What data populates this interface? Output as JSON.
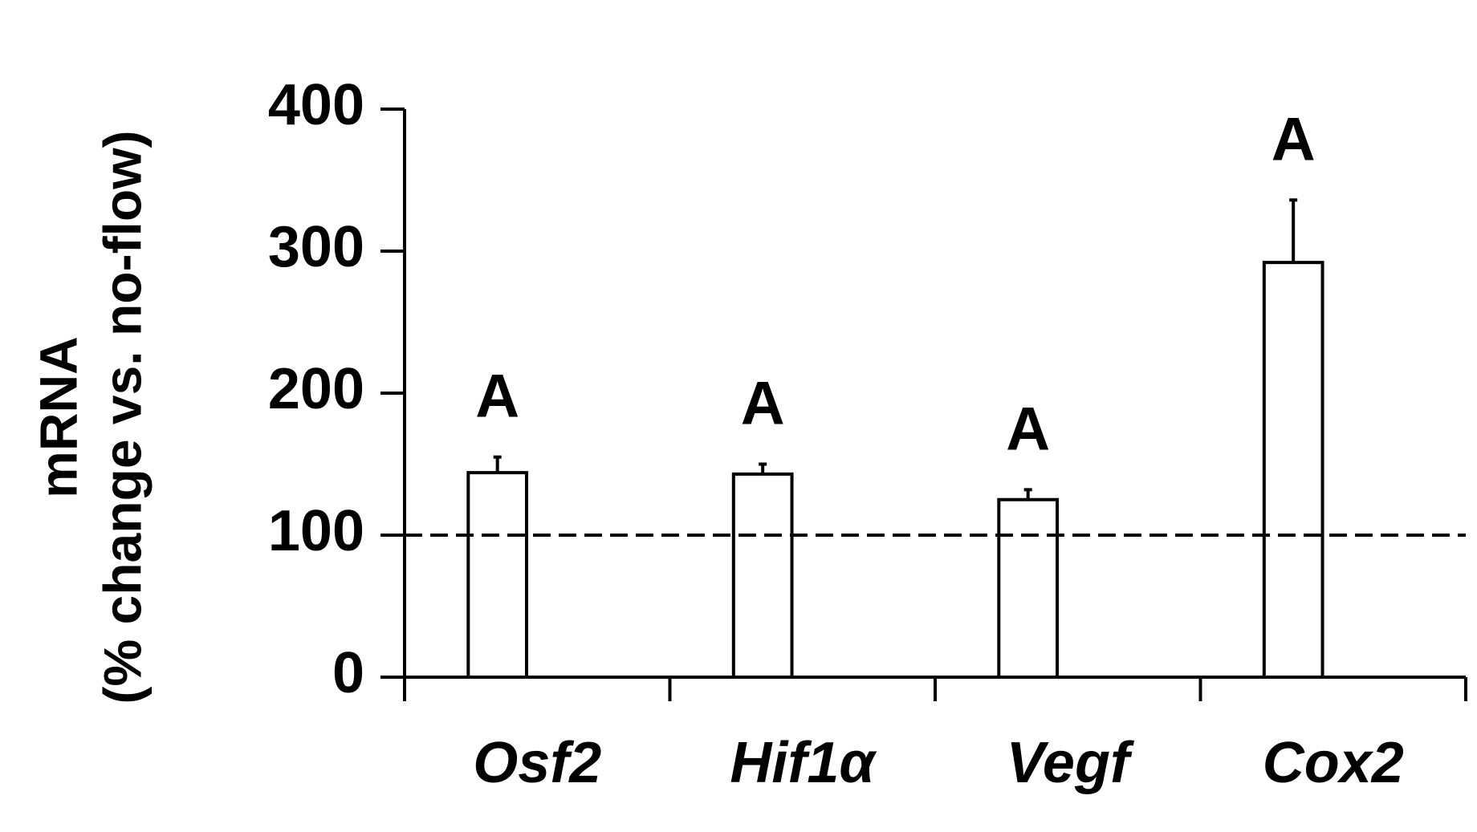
{
  "chart_data": {
    "type": "bar",
    "y_label_lines": [
      "mRNA",
      "(% change vs. no-flow)"
    ],
    "categories": [
      "Osf2",
      "Hif1α",
      "Vegf",
      "Cox2"
    ],
    "values": [
      144,
      143,
      125,
      292
    ],
    "errors": [
      11,
      7,
      7,
      44
    ],
    "annotations": [
      "A",
      "A",
      "A",
      "A"
    ],
    "color": "#ffffff",
    "reference_line": 100,
    "ylim": [
      0,
      400
    ],
    "yticks": [
      0,
      100,
      200,
      300,
      400
    ],
    "grid": false
  }
}
